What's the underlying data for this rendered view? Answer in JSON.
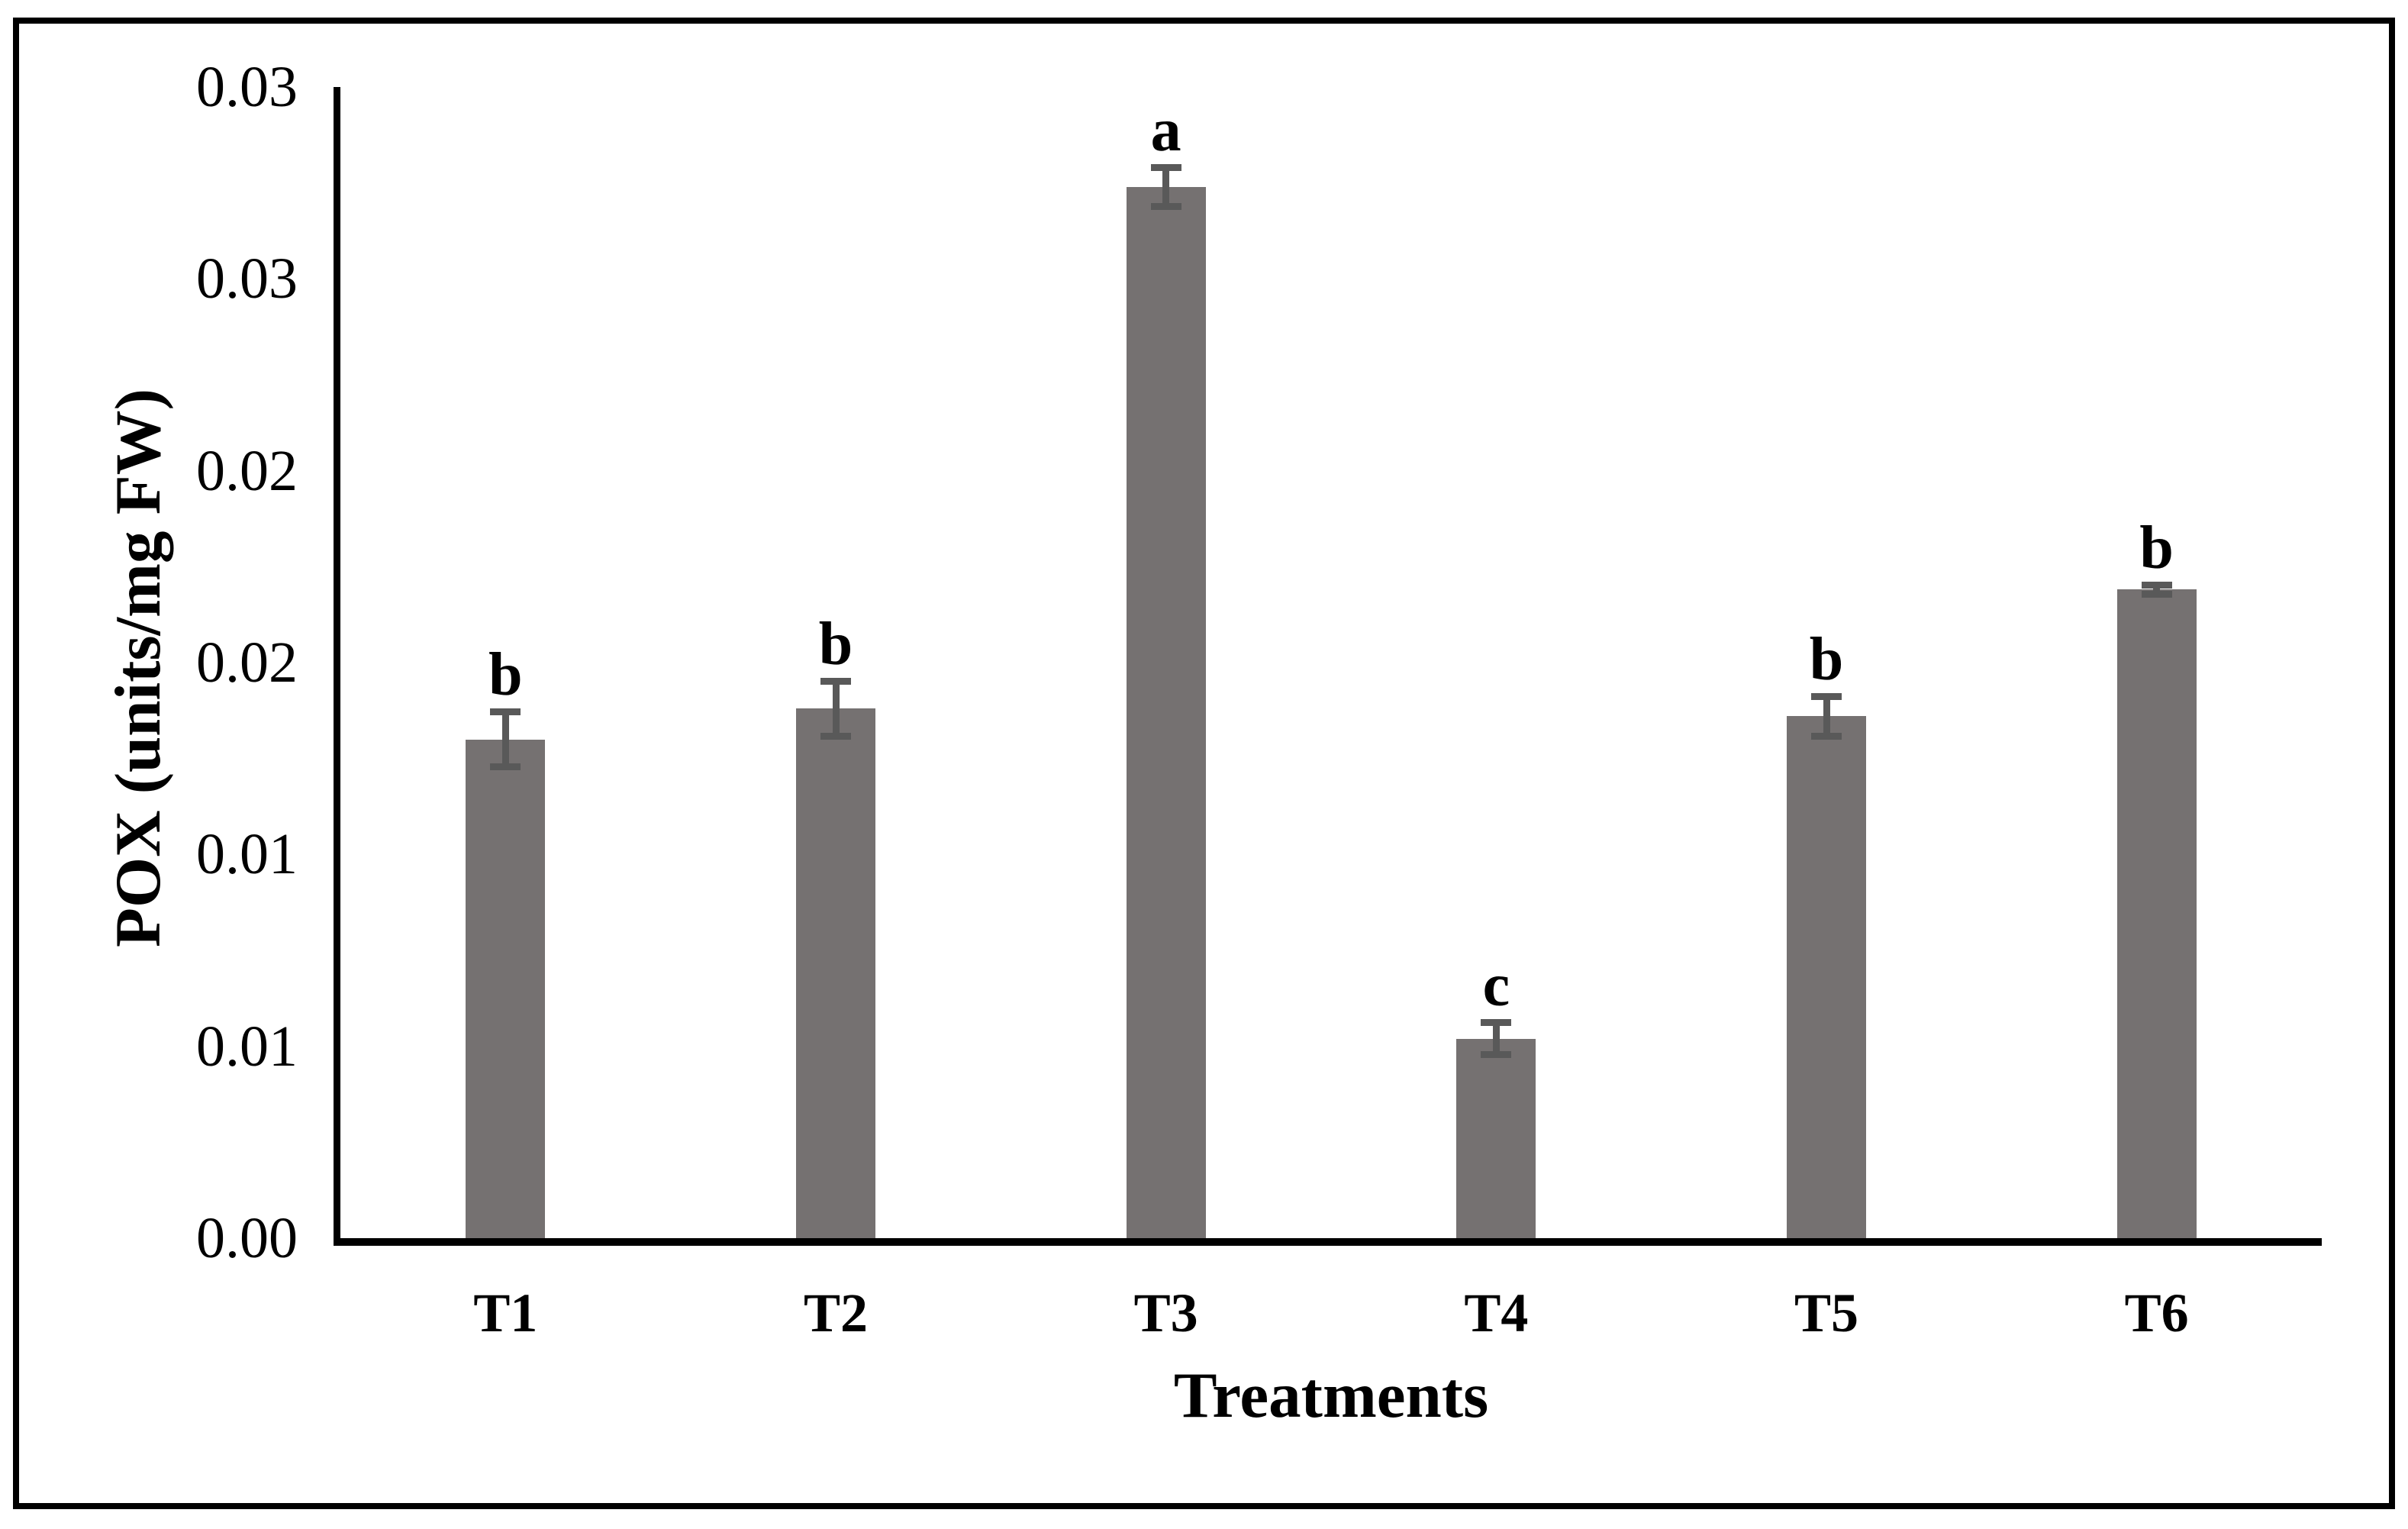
{
  "chart_data": {
    "type": "bar",
    "title": "",
    "xlabel": "Treatments",
    "ylabel": "POX (units/mg FW)",
    "categories": [
      "T1",
      "T2",
      "T3",
      "T4",
      "T5",
      "T6"
    ],
    "series": [
      {
        "name": "POX",
        "values": [
          0.013,
          0.0138,
          0.0274,
          0.0052,
          0.0136,
          0.0169
        ],
        "errors": [
          0.0008,
          0.0008,
          0.0006,
          0.0005,
          0.0006,
          0.0002
        ],
        "sig_letters": [
          "b",
          "b",
          "a",
          "c",
          "b",
          "b"
        ]
      }
    ],
    "ylim": [
      0,
      0.03
    ],
    "ytick_step": 0.005,
    "ytick_labels_bottom_to_top": [
      "0.00",
      "0.01",
      "0.01",
      "0.02",
      "0.02",
      "0.03",
      "0.03"
    ],
    "grid": false,
    "legend": "none",
    "bar_color": "#757171",
    "error_bar_color": "#595959",
    "axis_color": "#000000",
    "frame_color": "#000000",
    "background_color": "#ffffff"
  }
}
